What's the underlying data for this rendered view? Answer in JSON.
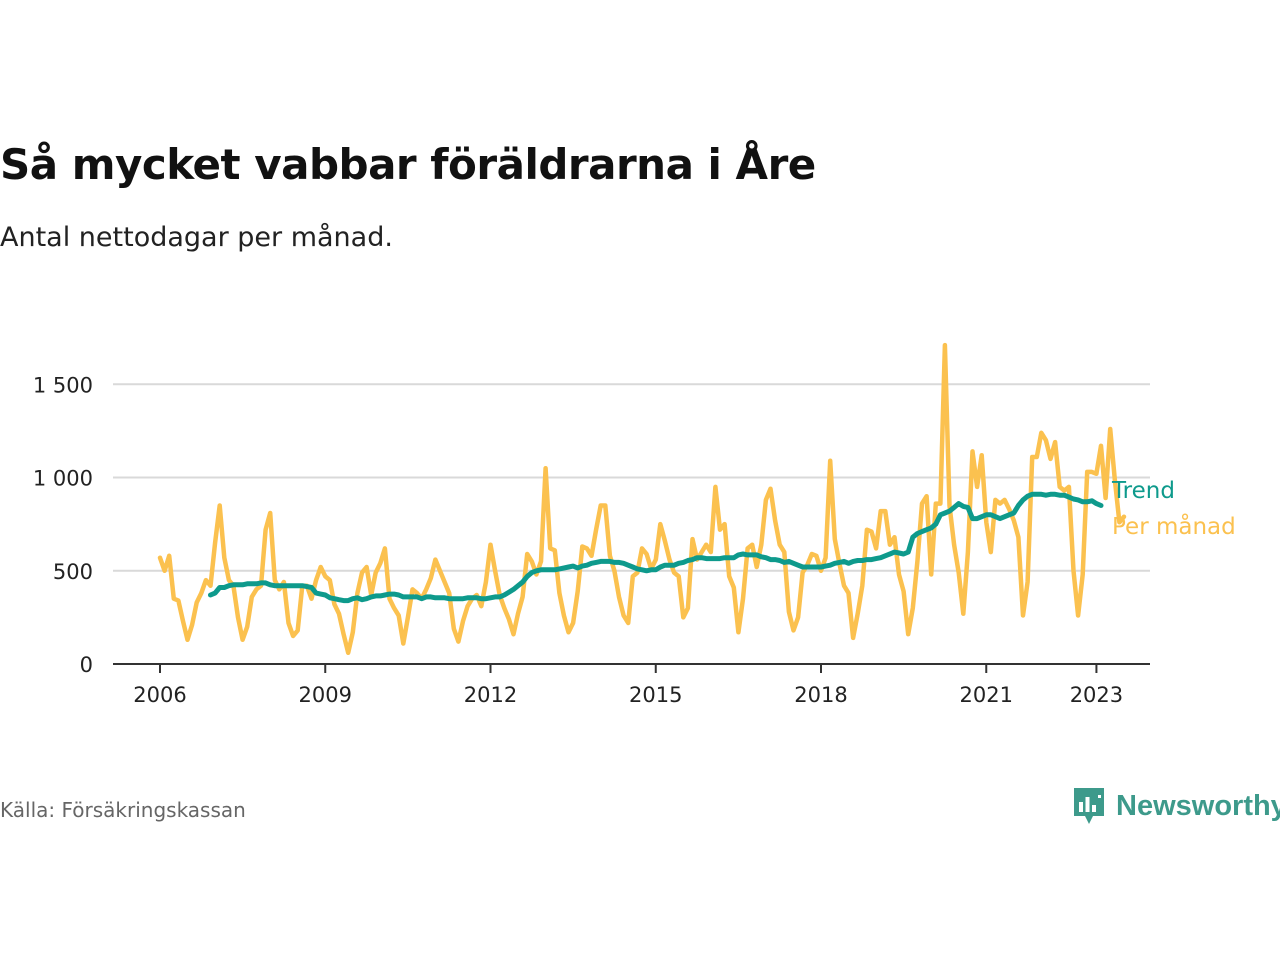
{
  "title": "Så mycket vabbar föräldrarna i Åre",
  "subtitle": "Antal nettodagar per månad.",
  "source": "Källa: Försäkringskassan",
  "brand": {
    "name": "Newsworthy",
    "icon": "bar-chart-speech-bubble-icon",
    "color": "#3d9a8b"
  },
  "colors": {
    "trend": "#0e9a8c",
    "monthly": "#fbc14f",
    "grid": "#d9d9d9",
    "axis": "#333333"
  },
  "chart_data": {
    "type": "line",
    "title": "Så mycket vabbar föräldrarna i Åre",
    "subtitle": "Antal nettodagar per månad.",
    "xlabel": "",
    "ylabel": "",
    "ylim": [
      0,
      1700
    ],
    "xlim": [
      2006,
      2023.9
    ],
    "y_ticks": [
      {
        "value": 0,
        "label": "0"
      },
      {
        "value": 500,
        "label": "500"
      },
      {
        "value": 1000,
        "label": "1 000"
      },
      {
        "value": 1500,
        "label": "1 500"
      }
    ],
    "x_ticks": [
      {
        "value": 2006,
        "label": "2006"
      },
      {
        "value": 2009,
        "label": "2009"
      },
      {
        "value": 2012,
        "label": "2012"
      },
      {
        "value": 2015,
        "label": "2015"
      },
      {
        "value": 2018,
        "label": "2018"
      },
      {
        "value": 2021,
        "label": "2021"
      },
      {
        "value": 2023,
        "label": "2023"
      }
    ],
    "grid": true,
    "legend": "right-of-lines",
    "series": [
      {
        "name": "Per månad",
        "label": "Per månad",
        "start": 2006,
        "step_months": 1,
        "values": [
          570,
          500,
          580,
          350,
          340,
          230,
          130,
          210,
          330,
          380,
          450,
          420,
          650,
          850,
          570,
          450,
          420,
          250,
          130,
          200,
          360,
          400,
          420,
          720,
          810,
          450,
          400,
          440,
          220,
          150,
          180,
          420,
          420,
          350,
          450,
          520,
          470,
          450,
          320,
          270,
          160,
          60,
          170,
          380,
          490,
          520,
          370,
          490,
          540,
          620,
          350,
          300,
          260,
          110,
          250,
          400,
          380,
          350,
          400,
          460,
          560,
          500,
          440,
          380,
          190,
          120,
          230,
          310,
          350,
          370,
          310,
          440,
          640,
          500,
          370,
          300,
          240,
          160,
          270,
          360,
          590,
          550,
          480,
          550,
          1050,
          620,
          610,
          380,
          260,
          170,
          220,
          390,
          630,
          620,
          580,
          720,
          850,
          850,
          580,
          500,
          360,
          260,
          220,
          470,
          490,
          620,
          590,
          510,
          560,
          750,
          660,
          560,
          490,
          470,
          250,
          300,
          670,
          560,
          600,
          640,
          600,
          950,
          720,
          750,
          470,
          410,
          170,
          350,
          620,
          640,
          520,
          640,
          880,
          940,
          770,
          640,
          600,
          280,
          180,
          250,
          490,
          530,
          590,
          580,
          500,
          570,
          1090,
          670,
          540,
          420,
          380,
          140,
          270,
          420,
          720,
          710,
          620,
          820,
          820,
          640,
          680,
          480,
          390,
          160,
          300,
          550,
          860,
          900,
          480,
          860,
          860,
          1710,
          850,
          640,
          490,
          270,
          600,
          1140,
          950,
          1120,
          760,
          600,
          880,
          860,
          880,
          830,
          770,
          680,
          260,
          440,
          1110,
          1110,
          1240,
          1200,
          1100,
          1190,
          950,
          930,
          950,
          500,
          260,
          480,
          1030,
          1030,
          1020,
          1170,
          890,
          1260,
          990,
          760,
          790
        ]
      },
      {
        "name": "Trend",
        "label": "Trend",
        "start": 2006.917,
        "step_months": 1,
        "values": [
          370,
          380,
          410,
          410,
          420,
          425,
          425,
          425,
          430,
          430,
          430,
          435,
          435,
          425,
          420,
          420,
          420,
          420,
          420,
          420,
          420,
          415,
          410,
          380,
          375,
          370,
          355,
          350,
          345,
          340,
          340,
          350,
          355,
          345,
          350,
          360,
          365,
          365,
          370,
          375,
          375,
          370,
          360,
          360,
          360,
          360,
          350,
          360,
          360,
          355,
          355,
          355,
          350,
          350,
          350,
          350,
          355,
          355,
          355,
          350,
          350,
          355,
          360,
          360,
          370,
          385,
          400,
          420,
          440,
          470,
          490,
          500,
          505,
          505,
          505,
          505,
          510,
          515,
          520,
          525,
          515,
          525,
          530,
          540,
          545,
          550,
          550,
          550,
          545,
          545,
          540,
          530,
          520,
          510,
          505,
          500,
          505,
          505,
          520,
          530,
          530,
          530,
          540,
          545,
          555,
          560,
          570,
          570,
          565,
          565,
          565,
          565,
          570,
          570,
          570,
          585,
          590,
          585,
          585,
          585,
          575,
          570,
          560,
          560,
          555,
          545,
          550,
          540,
          530,
          520,
          520,
          520,
          520,
          520,
          525,
          530,
          540,
          545,
          550,
          540,
          550,
          555,
          555,
          560,
          560,
          565,
          570,
          580,
          590,
          600,
          595,
          590,
          600,
          680,
          700,
          710,
          720,
          730,
          750,
          800,
          810,
          820,
          840,
          860,
          845,
          840,
          780,
          780,
          790,
          800,
          800,
          790,
          780,
          790,
          800,
          810,
          850,
          880,
          900,
          910,
          910,
          910,
          905,
          910,
          910,
          905,
          905,
          895,
          885,
          880,
          870,
          870,
          875,
          860,
          850
        ]
      }
    ]
  }
}
